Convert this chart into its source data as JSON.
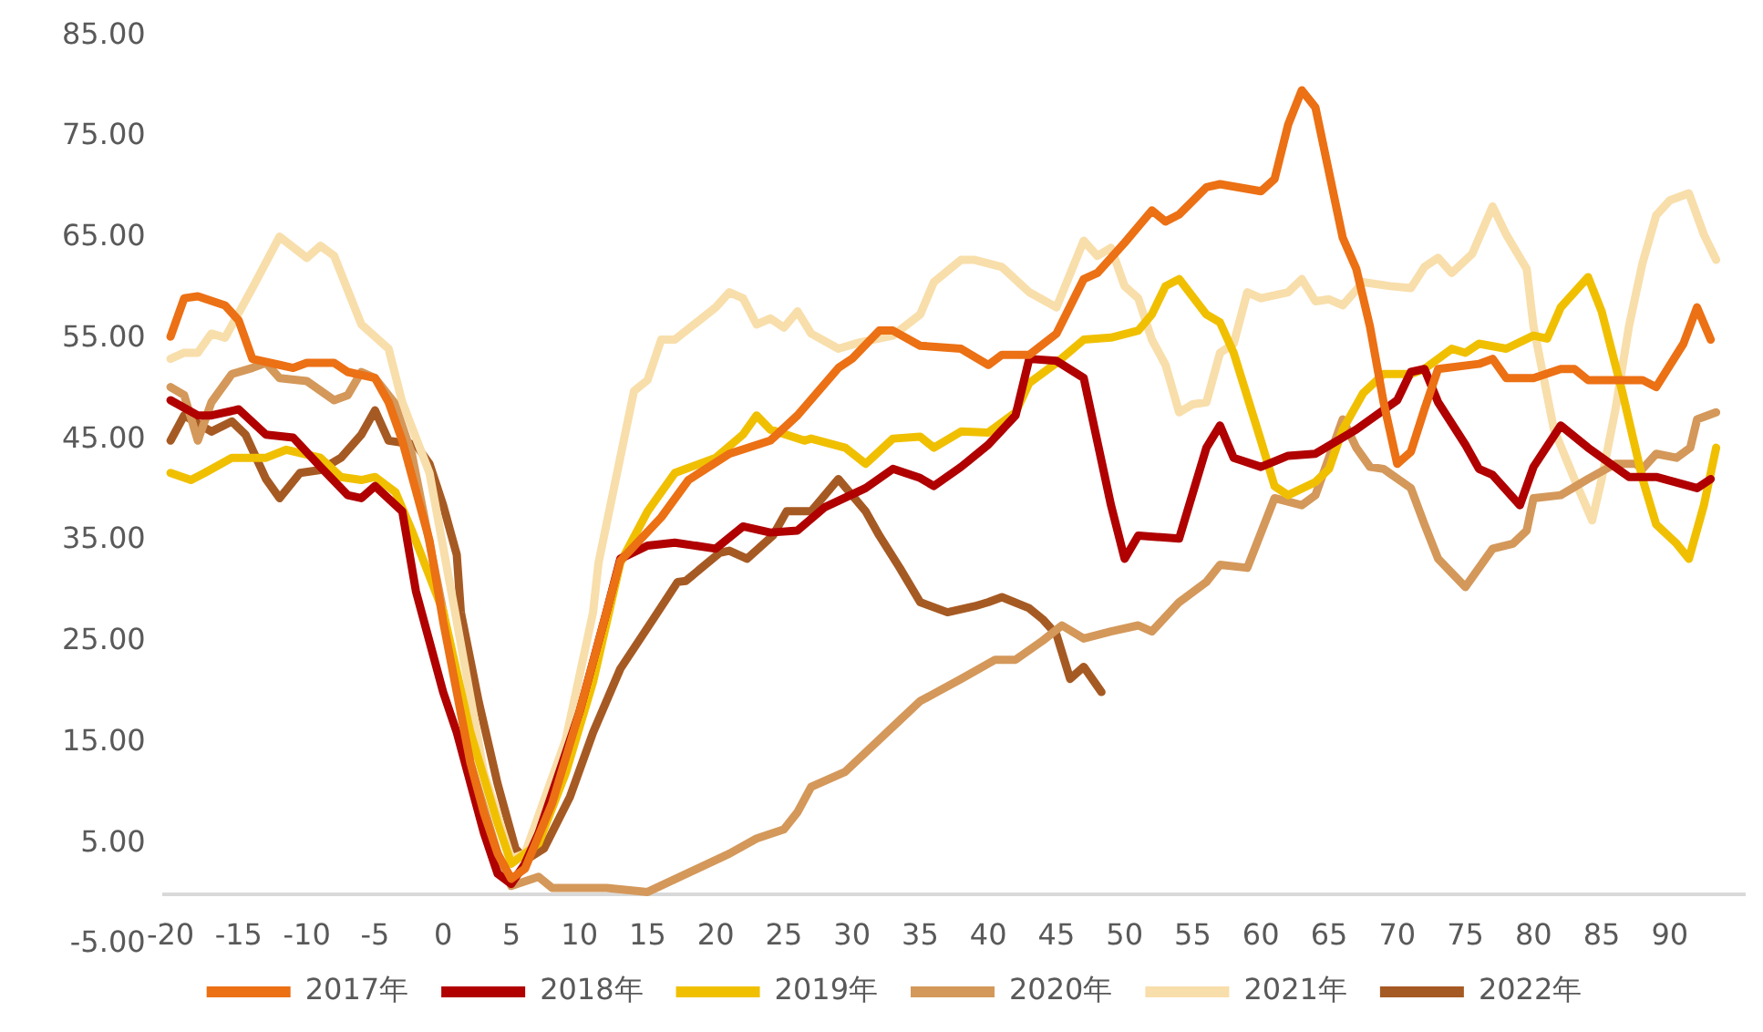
{
  "chart_data": {
    "type": "line",
    "legend": "bottom",
    "grid": false,
    "marker": "none",
    "line_style": "solid",
    "xlim": [
      -20.5,
      95.5
    ],
    "xticks": [
      -20,
      -15,
      -10,
      -5,
      0,
      5,
      10,
      15,
      20,
      25,
      30,
      35,
      40,
      45,
      50,
      55,
      60,
      65,
      70,
      75,
      80,
      85,
      90
    ],
    "ylim": [
      -5,
      85
    ],
    "yticks": [
      {
        "value": -5,
        "label": "-5.00"
      },
      {
        "value": 5,
        "label": "5.00"
      },
      {
        "value": 15,
        "label": "15.00"
      },
      {
        "value": 25,
        "label": "25.00"
      },
      {
        "value": 35,
        "label": "35.00"
      },
      {
        "value": 45,
        "label": "45.00"
      },
      {
        "value": 55,
        "label": "55.00"
      },
      {
        "value": 65,
        "label": "65.00"
      },
      {
        "value": 75,
        "label": "75.00"
      },
      {
        "value": 85,
        "label": "85.00"
      }
    ],
    "series": [
      {
        "name": "2017年",
        "color": "#ec7014",
        "x": [
          -20,
          -19,
          -18,
          -16,
          -15,
          -14,
          -12,
          -11,
          -10,
          -8,
          -7,
          -5,
          -4,
          -3,
          -1,
          0,
          1,
          2,
          3,
          4,
          5,
          6,
          8,
          10,
          12,
          13,
          16,
          18,
          21,
          24,
          26,
          29,
          30,
          32,
          33,
          35,
          38,
          40,
          41,
          43,
          45,
          47,
          48,
          50,
          52,
          53,
          54,
          56,
          57,
          60,
          61,
          62,
          63,
          64,
          66,
          67,
          68,
          69,
          70,
          71,
          72,
          73,
          76,
          77,
          78,
          80,
          82,
          83,
          84,
          88,
          89,
          91,
          92,
          93
        ],
        "values": [
          55.2,
          59,
          59.2,
          58.3,
          56.8,
          53,
          52.4,
          52.1,
          52.6,
          52.6,
          51.7,
          51.1,
          48.7,
          44.9,
          35,
          27,
          20,
          13,
          8,
          4,
          1.5,
          2.5,
          9,
          18,
          28,
          33,
          37.3,
          41,
          43.6,
          44.9,
          47.4,
          52.1,
          53,
          55.8,
          55.8,
          54.3,
          54,
          52.4,
          53.4,
          53.4,
          55.5,
          60.9,
          61.5,
          64.5,
          67.7,
          66.6,
          67.3,
          70,
          70.3,
          69.6,
          70.8,
          76.2,
          79.6,
          77.9,
          65,
          61.9,
          56.2,
          48.7,
          42.6,
          43.8,
          48,
          52,
          52.5,
          53,
          51.1,
          51.1,
          52,
          52,
          50.9,
          50.9,
          50.2,
          54.5,
          58.1,
          54.9
        ]
      },
      {
        "name": "2018年",
        "color": "#b00000",
        "x": [
          -20,
          -18,
          -17,
          -15,
          -13,
          -11,
          -9,
          -7,
          -6,
          -5,
          -3,
          -2,
          -1,
          0,
          1,
          2,
          3,
          4,
          5,
          6,
          7,
          8,
          9,
          10,
          11,
          12,
          13,
          15,
          17,
          20,
          22,
          24,
          26,
          28,
          31,
          33,
          35,
          36,
          38,
          40,
          42,
          43,
          45,
          47,
          49,
          50,
          51,
          54,
          56,
          57,
          58,
          60,
          62,
          64,
          67,
          70,
          71,
          72,
          73,
          75,
          76,
          77,
          79,
          80,
          82,
          84,
          87,
          89,
          92,
          93
        ],
        "values": [
          48.9,
          47.4,
          47.4,
          48,
          45.5,
          45.2,
          42.3,
          39.5,
          39.2,
          40.4,
          37.9,
          30,
          25,
          20,
          16,
          11,
          6,
          2,
          1,
          3,
          6,
          10,
          14,
          18,
          23,
          28,
          33.2,
          34.5,
          34.8,
          34.2,
          36.4,
          35.8,
          36,
          38.3,
          40.2,
          42.1,
          41.2,
          40.4,
          42.3,
          44.5,
          47.4,
          53,
          52.8,
          51.1,
          38.5,
          33.2,
          35.5,
          35.2,
          44.2,
          46.4,
          43.2,
          42.3,
          43.4,
          43.6,
          46,
          48.9,
          51.7,
          52,
          48.7,
          44.5,
          42.1,
          41.5,
          38.5,
          42.3,
          46.4,
          44.2,
          41.3,
          41.3,
          40.2,
          41.1
        ]
      },
      {
        "name": "2019年",
        "color": "#f0c000",
        "x": [
          -20,
          -18.5,
          -17.5,
          -15.5,
          -13,
          -11.5,
          -9,
          -7.5,
          -6,
          -5,
          -3.5,
          -2.3,
          0,
          2,
          4,
          5,
          7,
          9,
          11,
          13,
          15,
          17,
          20,
          22,
          23,
          24,
          26.5,
          27,
          29.5,
          31,
          33,
          35,
          36,
          38,
          40,
          42,
          43,
          45,
          47,
          49,
          51,
          52,
          53,
          54,
          56,
          57,
          58,
          60,
          61,
          62,
          64,
          65,
          66,
          67.5,
          69,
          71,
          72,
          74,
          75,
          76,
          78,
          80,
          81,
          82,
          84,
          85,
          86.5,
          88,
          89,
          90.5,
          91.4,
          92.5,
          93.4
        ],
        "values": [
          41.7,
          41,
          41.7,
          43.2,
          43.2,
          44,
          43.2,
          41.3,
          41,
          41.3,
          39.8,
          36,
          28,
          16,
          7,
          3,
          5,
          12,
          21,
          32.8,
          37.9,
          41.7,
          43.2,
          45.5,
          47.4,
          46,
          44.9,
          45.1,
          44.2,
          42.6,
          45.1,
          45.3,
          44.2,
          45.8,
          45.7,
          47.7,
          50.6,
          52.6,
          54.9,
          55.1,
          55.8,
          57.4,
          60.2,
          60.9,
          57.4,
          56.6,
          53.6,
          44.9,
          40.4,
          39.5,
          40.8,
          42.1,
          46,
          49.6,
          51.5,
          51.5,
          52,
          54,
          53.6,
          54.5,
          54,
          55.3,
          55,
          58.1,
          61.1,
          57.7,
          49.8,
          41.1,
          36.6,
          34.7,
          33.2,
          38.5,
          44.2
        ]
      },
      {
        "name": "2020年",
        "color": "#d4985a",
        "x": [
          -20,
          -19,
          -18,
          -17,
          -15.5,
          -14,
          -13,
          -12,
          -10,
          -8,
          -7,
          -6,
          -5,
          -3.6,
          -2.3,
          0,
          2,
          4,
          5,
          7,
          8,
          12,
          15,
          18,
          21,
          23,
          25,
          26,
          27,
          29.5,
          32,
          33.5,
          35,
          38,
          40.5,
          42,
          44,
          45.4,
          47,
          49,
          51,
          52,
          54,
          56,
          57,
          59,
          61,
          63,
          64,
          66,
          67,
          68,
          69,
          71,
          72,
          73,
          75,
          76,
          77,
          78.5,
          79.5,
          80,
          82,
          84,
          86,
          87.5,
          88,
          89,
          90.5,
          91.5,
          92,
          93.4
        ],
        "values": [
          50.2,
          49.4,
          44.9,
          48.7,
          51.5,
          52.1,
          52.6,
          51.1,
          50.8,
          48.9,
          49.4,
          51.7,
          51.1,
          48.7,
          43.6,
          28,
          13,
          4,
          0.8,
          1.7,
          0.6,
          0.6,
          0.2,
          2.1,
          4,
          5.5,
          6.4,
          8.1,
          10.6,
          12.1,
          15.3,
          17.2,
          19.1,
          21.3,
          23.2,
          23.2,
          25.1,
          26.6,
          25.3,
          26,
          26.6,
          26,
          28.9,
          30.9,
          32.6,
          32.3,
          39.2,
          38.5,
          39.5,
          47,
          44.2,
          42.3,
          42.1,
          40.2,
          36.6,
          33.2,
          30.4,
          32.3,
          34.2,
          34.7,
          36,
          39.2,
          39.5,
          41.1,
          42.6,
          42.6,
          42.1,
          43.6,
          43.2,
          44.2,
          47,
          47.7
        ]
      },
      {
        "name": "2021年",
        "color": "#f8deaa",
        "x": [
          -20,
          -19,
          -18,
          -17,
          -16,
          -14,
          -12,
          -10,
          -9,
          -8,
          -6,
          -4,
          -3,
          -1,
          1,
          3,
          5,
          6,
          9,
          11,
          11.4,
          14,
          15,
          16,
          17,
          20,
          21,
          22,
          23,
          24,
          25,
          26,
          27,
          29,
          30.5,
          33,
          35,
          36,
          38,
          39,
          41,
          43,
          45,
          47,
          48,
          49,
          50,
          51,
          52,
          53,
          54,
          55,
          56,
          57,
          58,
          59,
          60,
          62,
          63,
          64,
          65,
          66,
          67.5,
          69.5,
          71,
          72,
          73,
          74,
          75.5,
          77,
          78,
          79.5,
          80,
          81.5,
          83,
          84.3,
          85,
          86,
          87,
          88,
          89,
          90,
          91.4,
          92.5,
          93.4
        ],
        "values": [
          53,
          53.6,
          53.6,
          55.5,
          55.1,
          60,
          65.1,
          63,
          64.2,
          63.2,
          56.4,
          54,
          48.7,
          41.7,
          27,
          12,
          3.5,
          4,
          15.3,
          27.9,
          32.8,
          49.8,
          50.9,
          54.9,
          54.9,
          58.1,
          59.6,
          59,
          56.4,
          57,
          56.1,
          57.7,
          55.5,
          54,
          54.6,
          55.3,
          57.4,
          60.6,
          62.8,
          62.8,
          62.1,
          59.6,
          58.1,
          64.7,
          63.2,
          64,
          60.2,
          59,
          54.9,
          52.4,
          47.7,
          48.5,
          48.7,
          53.6,
          54.5,
          59.6,
          59,
          59.6,
          60.9,
          58.7,
          58.9,
          58.3,
          60.6,
          60.2,
          60,
          62.1,
          63,
          61.5,
          63.4,
          68.1,
          65.3,
          61.9,
          56.2,
          46,
          41.1,
          37,
          41.1,
          47.9,
          56.2,
          62.5,
          67.2,
          68.7,
          69.4,
          65.3,
          62.8
        ]
      },
      {
        "name": "2022年",
        "color": "#a65a23",
        "x": [
          -20,
          -19,
          -17,
          -15.5,
          -14.5,
          -13,
          -12,
          -10.5,
          -9,
          -7.5,
          -6,
          -5,
          -4,
          -2,
          -1,
          0,
          1,
          1.3,
          2.6,
          4,
          5.3,
          6.1,
          7.4,
          9.3,
          11,
          13,
          15.4,
          17.2,
          17.8,
          20.3,
          21,
          22.3,
          24.2,
          25.2,
          27,
          29,
          31,
          32,
          33.5,
          35,
          37,
          39,
          40,
          41,
          43,
          44,
          45,
          46,
          47,
          48.3
        ],
        "values": [
          44.9,
          47.4,
          45.8,
          46.8,
          45.5,
          41.1,
          39.2,
          41.7,
          42,
          43.2,
          45.5,
          47.9,
          44.9,
          44.5,
          42.6,
          38.5,
          33.6,
          27.9,
          19.1,
          10.9,
          4.5,
          3.4,
          4.5,
          9.6,
          16,
          22.3,
          27.2,
          30.9,
          31,
          33.8,
          34,
          33.2,
          35.5,
          37.9,
          37.9,
          41.1,
          37.9,
          35.5,
          32.3,
          28.9,
          27.9,
          28.5,
          28.9,
          29.4,
          28.3,
          27.2,
          25.7,
          21.3,
          22.5,
          20
        ]
      }
    ]
  }
}
